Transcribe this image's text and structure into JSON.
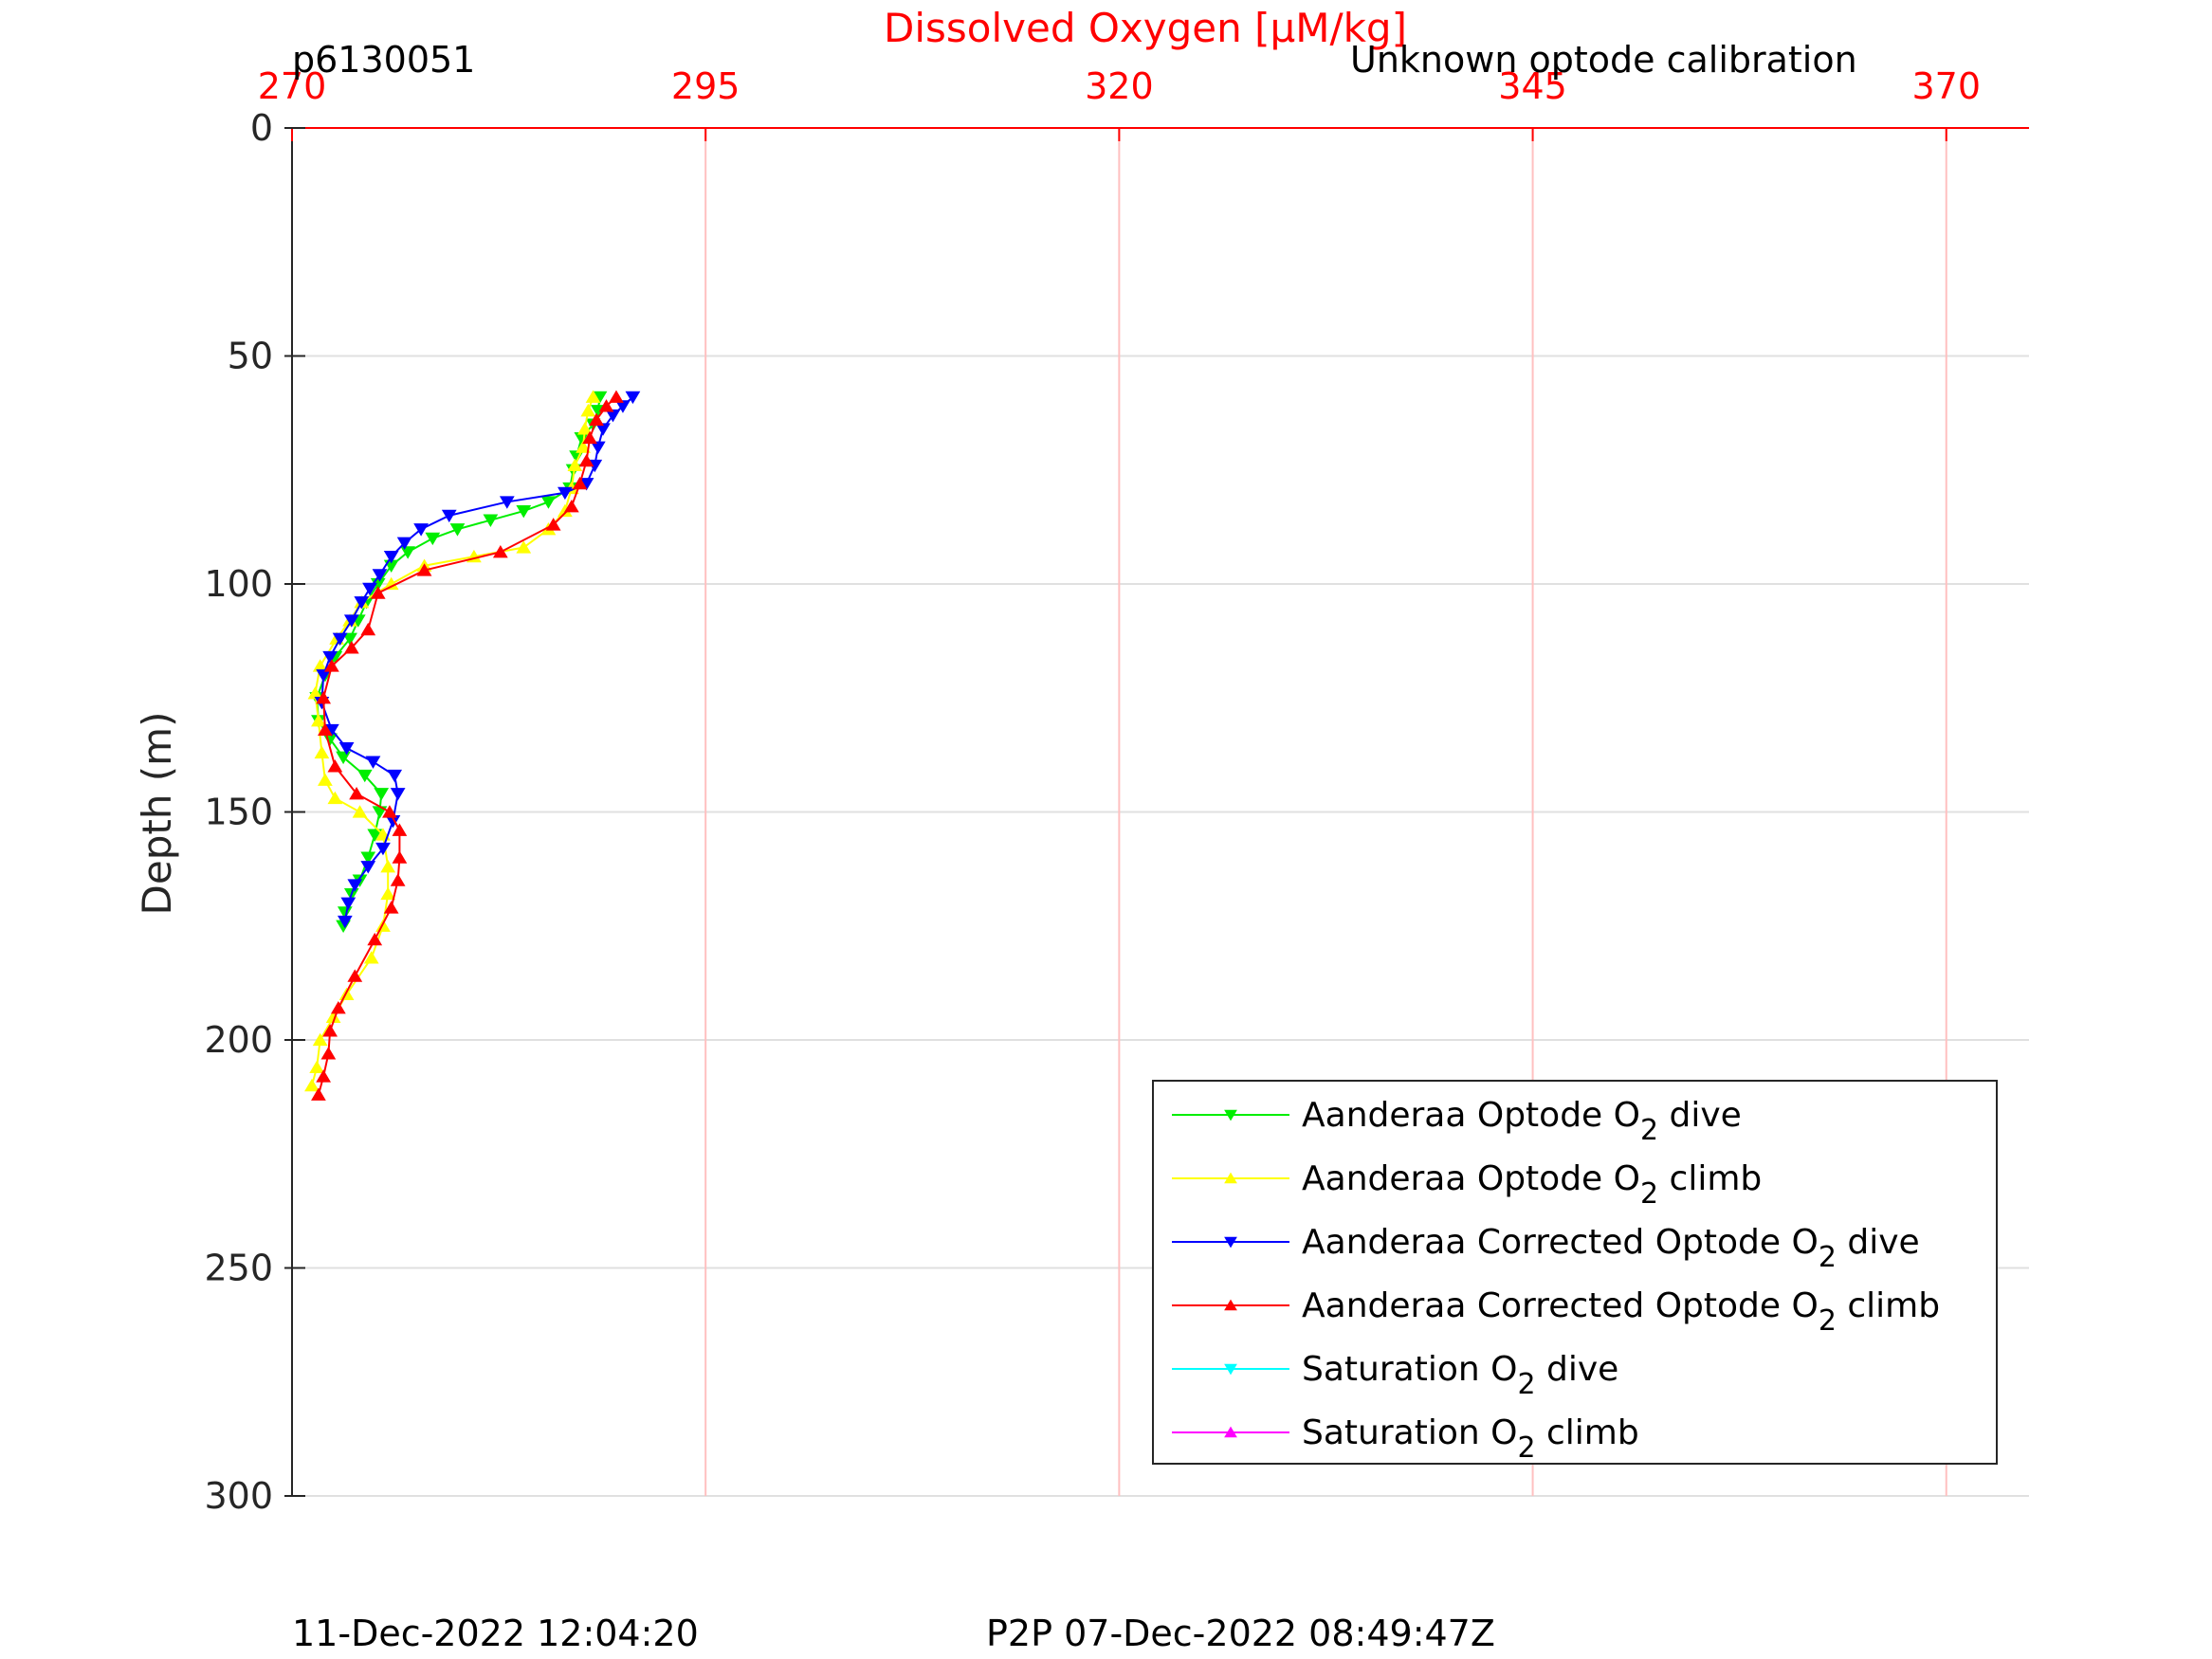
{
  "header": {
    "glider_id": "p6130051",
    "calibration_note": "Unknown optode calibration"
  },
  "footer": {
    "timestamp": "11-Dec-2022 12:04:20",
    "p2p": "P2P 07-Dec-2022 08:49:47Z"
  },
  "colors": {
    "axis_top": "#ff0000",
    "grid_x": "#ffc0c0",
    "grid_y": "#e0e0e0"
  },
  "chart_data": {
    "type": "line",
    "title": "",
    "xlabel": "Dissolved Oxygen [μM/kg]",
    "ylabel": "Depth (m)",
    "x_axis_position": "top",
    "y_axis_reversed": true,
    "xlim": [
      270,
      375
    ],
    "ylim": [
      0,
      300
    ],
    "xticks": [
      270,
      295,
      320,
      345,
      370
    ],
    "yticks": [
      0,
      50,
      100,
      150,
      200,
      250,
      300
    ],
    "grid": true,
    "legend_position": "bottom-right",
    "series": [
      {
        "name": "Aanderaa Optode O2 dive",
        "legend_main": "Aanderaa Optode O",
        "legend_sub": "2",
        "legend_tail": " dive",
        "color": "#00ee00",
        "marker": "down",
        "x": [
          288.6,
          288.5,
          288.2,
          287.5,
          287.2,
          287,
          286.8,
          285.5,
          284,
          282,
          280,
          278.5,
          277,
          276,
          275.2,
          274.5,
          274,
          273.5,
          272.6,
          272,
          271.5,
          271.6,
          272.3,
          273.1,
          274.4,
          275.4,
          275.3,
          275.0,
          274.6,
          274.1,
          273.6,
          273.2,
          273.1
        ],
        "y": [
          59,
          62,
          65,
          68,
          72,
          75,
          79,
          82,
          84,
          86,
          88,
          90,
          93,
          96,
          100,
          104,
          108,
          112,
          116,
          120,
          125,
          130,
          134,
          138,
          142,
          146,
          150,
          155,
          160,
          165,
          168,
          172,
          175
        ]
      },
      {
        "name": "Aanderaa Optode O2 climb",
        "legend_main": "Aanderaa Optode O",
        "legend_sub": "2",
        "legend_tail": " climb",
        "color": "#ffff00",
        "marker": "up",
        "x": [
          271.2,
          271.5,
          271.7,
          272.5,
          273.3,
          274.8,
          275.5,
          275.8,
          275.8,
          275.5,
          274.1,
          272.6,
          272.0,
          271.8,
          271.6,
          271.4,
          271.7,
          272.7,
          273.5,
          274.2,
          276.0,
          278.0,
          281.0,
          284.0,
          285.5,
          286.5,
          286.9,
          287.1,
          287.6,
          287.7,
          287.9,
          288.2
        ],
        "y": [
          210,
          206,
          200,
          195,
          190,
          182,
          175,
          168,
          162,
          155,
          150,
          147,
          143,
          137,
          130,
          124,
          118,
          112,
          108,
          104,
          100,
          96,
          94,
          92,
          88,
          84,
          79,
          74,
          70,
          66,
          62,
          59
        ]
      },
      {
        "name": "Aanderaa Corrected Optode O2 dive",
        "legend_main": "Aanderaa Corrected Optode O",
        "legend_sub": "2",
        "legend_tail": " dive",
        "color": "#0000ff",
        "marker": "down",
        "x": [
          290.6,
          290.0,
          289.4,
          288.8,
          288.5,
          288.3,
          287.8,
          286.5,
          283,
          279.5,
          277.8,
          276.8,
          276,
          275.3,
          274.7,
          274.2,
          273.6,
          272.9,
          272.3,
          271.9,
          271.8,
          272.4,
          273.3,
          274.9,
          276.2,
          276.4,
          276.1,
          275.5,
          274.6,
          273.8,
          273.4,
          273.2
        ],
        "y": [
          59,
          61,
          63,
          66,
          70,
          74,
          78,
          80,
          82,
          85,
          88,
          91,
          94,
          98,
          101,
          104,
          108,
          112,
          116,
          120,
          126,
          132,
          136,
          139,
          142,
          146,
          152,
          158,
          162,
          166,
          170,
          174
        ]
      },
      {
        "name": "Aanderaa Corrected Optode O2 climb",
        "legend_main": "Aanderaa Corrected Optode O",
        "legend_sub": "2",
        "legend_tail": " climb",
        "color": "#ff0000",
        "marker": "up",
        "x": [
          271.6,
          271.9,
          272.2,
          272.3,
          272.8,
          273.8,
          275.0,
          276.0,
          276.4,
          276.5,
          276.5,
          275.9,
          273.9,
          272.6,
          272.0,
          271.9,
          272.4,
          273.6,
          274.6,
          275.2,
          278.0,
          282.6,
          285.8,
          286.9,
          287.4,
          287.8,
          288.0,
          288.4,
          289.0,
          289.6
        ],
        "y": [
          212,
          208,
          203,
          198,
          193,
          186,
          178,
          171,
          165,
          160,
          154,
          150,
          146,
          140,
          132,
          125,
          118,
          114,
          110,
          102,
          97,
          93,
          87,
          83,
          78,
          73,
          68,
          64,
          61,
          59
        ]
      },
      {
        "name": "Saturation O2 dive",
        "legend_main": "Saturation O",
        "legend_sub": "2",
        "legend_tail": " dive",
        "color": "#00ffff",
        "marker": "down",
        "x": [],
        "y": []
      },
      {
        "name": "Saturation O2 climb",
        "legend_main": "Saturation O",
        "legend_sub": "2",
        "legend_tail": " climb",
        "color": "#ff00ff",
        "marker": "up",
        "x": [],
        "y": []
      }
    ]
  }
}
